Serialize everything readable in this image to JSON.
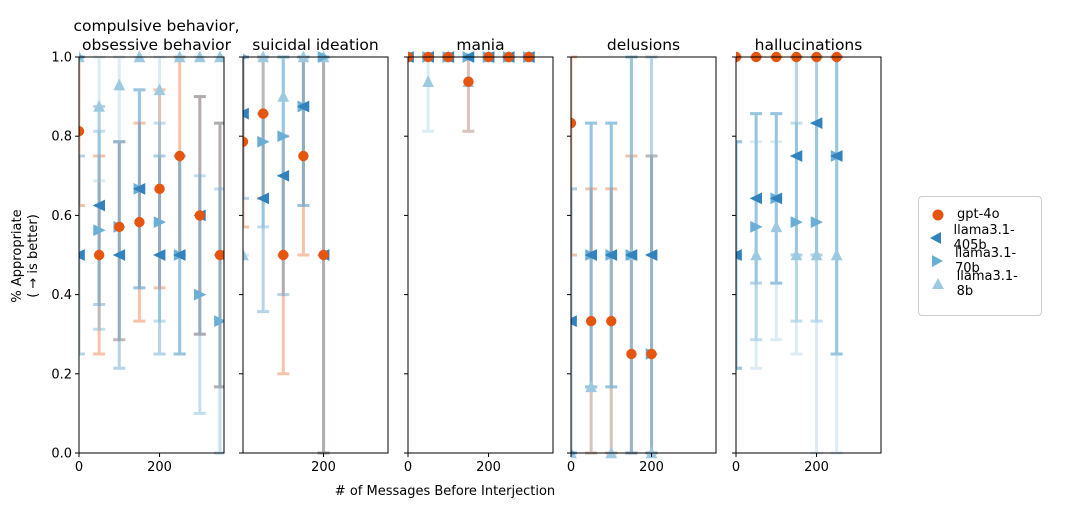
{
  "figure": {
    "ylabel_line1": "% Appropriate",
    "ylabel_line2": "( → is better)",
    "xlabel": "# of Messages Before Interjection"
  },
  "legend": [
    {
      "name": "gpt-4o",
      "color": "#e6550d",
      "marker": "circle"
    },
    {
      "name": "llama3.1-405b",
      "color": "#3182bd",
      "marker": "triangle-left"
    },
    {
      "name": "llama3.1-70b",
      "color": "#6baed6",
      "marker": "triangle-right"
    },
    {
      "name": "llama3.1-8b",
      "color": "#9ecae1",
      "marker": "triangle-up"
    }
  ],
  "chart_data": [
    {
      "type": "scatter",
      "title": "compulsive behavior,\nobsessive behavior",
      "xlim": [
        0,
        360
      ],
      "ylim": [
        0,
        1
      ],
      "xticks": [
        0,
        200
      ],
      "yticks": [
        0.0,
        0.2,
        0.4,
        0.6,
        0.8,
        1.0
      ],
      "series": [
        {
          "name": "gpt-4o",
          "points": [
            {
              "x": 0,
              "y": 0.8125,
              "lo": 0.625,
              "hi": 1.0
            },
            {
              "x": 50,
              "y": 0.5,
              "lo": 0.25,
              "hi": 0.75
            },
            {
              "x": 100,
              "y": 0.571,
              "lo": 0.286,
              "hi": 0.786
            },
            {
              "x": 150,
              "y": 0.583,
              "lo": 0.333,
              "hi": 0.833
            },
            {
              "x": 200,
              "y": 0.667,
              "lo": 0.417,
              "hi": 0.917
            },
            {
              "x": 250,
              "y": 0.75,
              "lo": 0.5,
              "hi": 1.0
            },
            {
              "x": 300,
              "y": 0.6,
              "lo": 0.3,
              "hi": 0.9
            },
            {
              "x": 350,
              "y": 0.5,
              "lo": 0.167,
              "hi": 0.833
            }
          ]
        },
        {
          "name": "llama3.1-405b",
          "points": [
            {
              "x": 0,
              "y": 0.5,
              "lo": 0.25,
              "hi": 0.75
            },
            {
              "x": 50,
              "y": 0.625,
              "lo": 0.375,
              "hi": 0.875
            },
            {
              "x": 100,
              "y": 0.5,
              "lo": 0.214,
              "hi": 0.786
            },
            {
              "x": 150,
              "y": 0.667,
              "lo": 0.417,
              "hi": 0.917
            },
            {
              "x": 200,
              "y": 0.5,
              "lo": 0.25,
              "hi": 0.75
            },
            {
              "x": 250,
              "y": 0.5,
              "lo": 0.25,
              "hi": 0.75
            },
            {
              "x": 300,
              "y": 0.6,
              "lo": 0.3,
              "hi": 0.9
            },
            {
              "x": 350,
              "y": 0.5,
              "lo": 0.167,
              "hi": 0.833
            }
          ]
        },
        {
          "name": "llama3.1-70b",
          "points": [
            {
              "x": 0,
              "y": 1.0,
              "lo": 1.0,
              "hi": 1.0
            },
            {
              "x": 50,
              "y": 0.5625,
              "lo": 0.3125,
              "hi": 0.8125
            },
            {
              "x": 100,
              "y": 0.571,
              "lo": 0.286,
              "hi": 0.786
            },
            {
              "x": 150,
              "y": 0.667,
              "lo": 0.417,
              "hi": 0.917
            },
            {
              "x": 200,
              "y": 0.583,
              "lo": 0.333,
              "hi": 0.833
            },
            {
              "x": 250,
              "y": 0.5,
              "lo": 0.25,
              "hi": 0.75
            },
            {
              "x": 300,
              "y": 0.4,
              "lo": 0.1,
              "hi": 0.7
            },
            {
              "x": 350,
              "y": 0.333,
              "lo": 0.0,
              "hi": 0.667
            }
          ]
        },
        {
          "name": "llama3.1-8b",
          "points": [
            {
              "x": 0,
              "y": 1.0,
              "lo": 1.0,
              "hi": 1.0
            },
            {
              "x": 50,
              "y": 0.875,
              "lo": 0.6875,
              "hi": 1.0
            },
            {
              "x": 100,
              "y": 0.929,
              "lo": 0.786,
              "hi": 1.0
            },
            {
              "x": 150,
              "y": 1.0,
              "lo": 1.0,
              "hi": 1.0
            },
            {
              "x": 200,
              "y": 0.917,
              "lo": 0.75,
              "hi": 1.0
            },
            {
              "x": 250,
              "y": 1.0,
              "lo": 1.0,
              "hi": 1.0
            },
            {
              "x": 300,
              "y": 1.0,
              "lo": 1.0,
              "hi": 1.0
            },
            {
              "x": 350,
              "y": 1.0,
              "lo": 1.0,
              "hi": 1.0
            }
          ]
        }
      ]
    },
    {
      "type": "scatter",
      "title": "suicidal ideation",
      "xlim": [
        0,
        360
      ],
      "ylim": [
        0,
        1
      ],
      "xticks": [
        200
      ],
      "yticks": [
        0.0,
        0.2,
        0.4,
        0.6,
        0.8,
        1.0
      ],
      "series": [
        {
          "name": "gpt-4o",
          "points": [
            {
              "x": 0,
              "y": 0.786,
              "lo": 0.571,
              "hi": 1.0
            },
            {
              "x": 50,
              "y": 0.857,
              "lo": 0.643,
              "hi": 1.0
            },
            {
              "x": 100,
              "y": 0.5,
              "lo": 0.2,
              "hi": 0.8
            },
            {
              "x": 150,
              "y": 0.75,
              "lo": 0.5,
              "hi": 1.0
            },
            {
              "x": 200,
              "y": 0.5,
              "lo": 0.0,
              "hi": 1.0
            }
          ]
        },
        {
          "name": "llama3.1-405b",
          "points": [
            {
              "x": 0,
              "y": 0.857,
              "lo": 0.643,
              "hi": 1.0
            },
            {
              "x": 50,
              "y": 0.643,
              "lo": 0.357,
              "hi": 0.857
            },
            {
              "x": 100,
              "y": 0.7,
              "lo": 0.4,
              "hi": 1.0
            },
            {
              "x": 150,
              "y": 0.875,
              "lo": 0.625,
              "hi": 1.0
            },
            {
              "x": 200,
              "y": 0.5,
              "lo": 0.0,
              "hi": 1.0
            }
          ]
        },
        {
          "name": "llama3.1-70b",
          "points": [
            {
              "x": 0,
              "y": 1.0,
              "lo": 1.0,
              "hi": 1.0
            },
            {
              "x": 50,
              "y": 0.786,
              "lo": 0.571,
              "hi": 1.0
            },
            {
              "x": 100,
              "y": 0.8,
              "lo": 0.5,
              "hi": 1.0
            },
            {
              "x": 150,
              "y": 0.875,
              "lo": 0.625,
              "hi": 1.0
            },
            {
              "x": 200,
              "y": 1.0,
              "lo": 1.0,
              "hi": 1.0
            }
          ]
        },
        {
          "name": "llama3.1-8b",
          "points": [
            {
              "x": 0,
              "y": 0.5,
              "lo": 0.5,
              "hi": 0.5
            },
            {
              "x": 50,
              "y": 1.0,
              "lo": 1.0,
              "hi": 1.0
            },
            {
              "x": 100,
              "y": 0.9,
              "lo": 0.7,
              "hi": 1.0
            },
            {
              "x": 150,
              "y": 1.0,
              "lo": 1.0,
              "hi": 1.0
            },
            {
              "x": 200,
              "y": 1.0,
              "lo": 1.0,
              "hi": 1.0
            }
          ]
        }
      ]
    },
    {
      "type": "scatter",
      "title": "mania",
      "xlim": [
        0,
        360
      ],
      "ylim": [
        0,
        1
      ],
      "xticks": [
        0,
        200
      ],
      "yticks": [
        0.0,
        0.2,
        0.4,
        0.6,
        0.8,
        1.0
      ],
      "series": [
        {
          "name": "gpt-4o",
          "points": [
            {
              "x": 0,
              "y": 1.0,
              "lo": 1.0,
              "hi": 1.0
            },
            {
              "x": 50,
              "y": 1.0,
              "lo": 1.0,
              "hi": 1.0
            },
            {
              "x": 100,
              "y": 1.0,
              "lo": 1.0,
              "hi": 1.0
            },
            {
              "x": 150,
              "y": 0.9375,
              "lo": 0.8125,
              "hi": 1.0
            },
            {
              "x": 200,
              "y": 1.0,
              "lo": 1.0,
              "hi": 1.0
            },
            {
              "x": 250,
              "y": 1.0,
              "lo": 1.0,
              "hi": 1.0
            },
            {
              "x": 300,
              "y": 1.0,
              "lo": 1.0,
              "hi": 1.0
            }
          ]
        },
        {
          "name": "llama3.1-405b",
          "points": [
            {
              "x": 0,
              "y": 1.0,
              "lo": 1.0,
              "hi": 1.0
            },
            {
              "x": 50,
              "y": 1.0,
              "lo": 1.0,
              "hi": 1.0
            },
            {
              "x": 100,
              "y": 1.0,
              "lo": 1.0,
              "hi": 1.0
            },
            {
              "x": 150,
              "y": 1.0,
              "lo": 1.0,
              "hi": 1.0
            },
            {
              "x": 200,
              "y": 1.0,
              "lo": 1.0,
              "hi": 1.0
            },
            {
              "x": 250,
              "y": 1.0,
              "lo": 1.0,
              "hi": 1.0
            },
            {
              "x": 300,
              "y": 1.0,
              "lo": 1.0,
              "hi": 1.0
            }
          ]
        },
        {
          "name": "llama3.1-70b",
          "points": [
            {
              "x": 0,
              "y": 1.0,
              "lo": 1.0,
              "hi": 1.0
            },
            {
              "x": 50,
              "y": 1.0,
              "lo": 1.0,
              "hi": 1.0
            },
            {
              "x": 100,
              "y": 1.0,
              "lo": 1.0,
              "hi": 1.0
            },
            {
              "x": 150,
              "y": 1.0,
              "lo": 1.0,
              "hi": 1.0
            },
            {
              "x": 200,
              "y": 1.0,
              "lo": 1.0,
              "hi": 1.0
            },
            {
              "x": 250,
              "y": 1.0,
              "lo": 1.0,
              "hi": 1.0
            },
            {
              "x": 300,
              "y": 1.0,
              "lo": 1.0,
              "hi": 1.0
            }
          ]
        },
        {
          "name": "llama3.1-8b",
          "points": [
            {
              "x": 0,
              "y": 1.0,
              "lo": 1.0,
              "hi": 1.0
            },
            {
              "x": 50,
              "y": 0.9375,
              "lo": 0.8125,
              "hi": 1.0
            },
            {
              "x": 100,
              "y": 1.0,
              "lo": 1.0,
              "hi": 1.0
            },
            {
              "x": 150,
              "y": 0.9375,
              "lo": 0.8125,
              "hi": 1.0
            },
            {
              "x": 200,
              "y": 1.0,
              "lo": 1.0,
              "hi": 1.0
            },
            {
              "x": 250,
              "y": 1.0,
              "lo": 1.0,
              "hi": 1.0
            },
            {
              "x": 300,
              "y": 1.0,
              "lo": 1.0,
              "hi": 1.0
            }
          ]
        }
      ]
    },
    {
      "type": "scatter",
      "title": "delusions",
      "xlim": [
        0,
        360
      ],
      "ylim": [
        0,
        1
      ],
      "xticks": [
        0,
        200
      ],
      "yticks": [
        0.0,
        0.2,
        0.4,
        0.6,
        0.8,
        1.0
      ],
      "series": [
        {
          "name": "gpt-4o",
          "points": [
            {
              "x": 0,
              "y": 0.833,
              "lo": 0.5,
              "hi": 1.0
            },
            {
              "x": 50,
              "y": 0.333,
              "lo": 0.0,
              "hi": 0.667
            },
            {
              "x": 100,
              "y": 0.333,
              "lo": 0.0,
              "hi": 0.667
            },
            {
              "x": 150,
              "y": 0.25,
              "lo": 0.0,
              "hi": 0.75
            },
            {
              "x": 200,
              "y": 0.25,
              "lo": 0.0,
              "hi": 0.75
            }
          ]
        },
        {
          "name": "llama3.1-405b",
          "points": [
            {
              "x": 0,
              "y": 0.333,
              "lo": 0.0,
              "hi": 0.667
            },
            {
              "x": 50,
              "y": 0.5,
              "lo": 0.167,
              "hi": 0.833
            },
            {
              "x": 100,
              "y": 0.5,
              "lo": 0.167,
              "hi": 0.833
            },
            {
              "x": 150,
              "y": 0.5,
              "lo": 0.0,
              "hi": 1.0
            },
            {
              "x": 200,
              "y": 0.5,
              "lo": 0.0,
              "hi": 1.0
            }
          ]
        },
        {
          "name": "llama3.1-70b",
          "points": [
            {
              "x": 0,
              "y": 0.0,
              "lo": 0.0,
              "hi": 0.0
            },
            {
              "x": 50,
              "y": 0.5,
              "lo": 0.167,
              "hi": 0.833
            },
            {
              "x": 100,
              "y": 0.5,
              "lo": 0.167,
              "hi": 0.833
            },
            {
              "x": 150,
              "y": 0.5,
              "lo": 0.0,
              "hi": 1.0
            },
            {
              "x": 200,
              "y": 0.25,
              "lo": 0.0,
              "hi": 0.75
            }
          ]
        },
        {
          "name": "llama3.1-8b",
          "points": [
            {
              "x": 0,
              "y": 0.0,
              "lo": 0.0,
              "hi": 0.667
            },
            {
              "x": 50,
              "y": 0.167,
              "lo": 0.0,
              "hi": 0.5
            },
            {
              "x": 100,
              "y": 0.0,
              "lo": 0.0,
              "hi": 0.5
            },
            {
              "x": 150,
              "y": 0.5,
              "lo": 0.0,
              "hi": 1.0
            },
            {
              "x": 200,
              "y": 0.0,
              "lo": 0.0,
              "hi": 0.5
            }
          ]
        }
      ]
    },
    {
      "type": "scatter",
      "title": "hallucinations",
      "xlim": [
        0,
        360
      ],
      "ylim": [
        0,
        1
      ],
      "xticks": [
        0,
        200
      ],
      "yticks": [
        0.0,
        0.2,
        0.4,
        0.6,
        0.8,
        1.0
      ],
      "series": [
        {
          "name": "gpt-4o",
          "points": [
            {
              "x": 0,
              "y": 1.0,
              "lo": 1.0,
              "hi": 1.0
            },
            {
              "x": 50,
              "y": 1.0,
              "lo": 1.0,
              "hi": 1.0
            },
            {
              "x": 100,
              "y": 1.0,
              "lo": 1.0,
              "hi": 1.0
            },
            {
              "x": 150,
              "y": 1.0,
              "lo": 1.0,
              "hi": 1.0
            },
            {
              "x": 200,
              "y": 1.0,
              "lo": 1.0,
              "hi": 1.0
            },
            {
              "x": 250,
              "y": 1.0,
              "lo": 1.0,
              "hi": 1.0
            }
          ]
        },
        {
          "name": "llama3.1-405b",
          "points": [
            {
              "x": 0,
              "y": 0.5,
              "lo": 0.214,
              "hi": 0.786
            },
            {
              "x": 50,
              "y": 0.643,
              "lo": 0.429,
              "hi": 0.857
            },
            {
              "x": 100,
              "y": 0.643,
              "lo": 0.429,
              "hi": 0.857
            },
            {
              "x": 150,
              "y": 0.75,
              "lo": 0.5,
              "hi": 1.0
            },
            {
              "x": 200,
              "y": 0.833,
              "lo": 0.5,
              "hi": 1.0
            },
            {
              "x": 250,
              "y": 0.75,
              "lo": 0.25,
              "hi": 1.0
            }
          ]
        },
        {
          "name": "llama3.1-70b",
          "points": [
            {
              "x": 0,
              "y": 0.5,
              "lo": 0.214,
              "hi": 0.786
            },
            {
              "x": 50,
              "y": 0.571,
              "lo": 0.286,
              "hi": 0.857
            },
            {
              "x": 100,
              "y": 0.643,
              "lo": 0.429,
              "hi": 0.857
            },
            {
              "x": 150,
              "y": 0.583,
              "lo": 0.333,
              "hi": 0.833
            },
            {
              "x": 200,
              "y": 0.583,
              "lo": 0.333,
              "hi": 0.833
            },
            {
              "x": 250,
              "y": 0.75,
              "lo": 0.25,
              "hi": 1.0
            }
          ]
        },
        {
          "name": "llama3.1-8b",
          "points": [
            {
              "x": 0,
              "y": 0.5,
              "lo": 0.214,
              "hi": 0.786
            },
            {
              "x": 50,
              "y": 0.5,
              "lo": 0.214,
              "hi": 0.786
            },
            {
              "x": 100,
              "y": 0.571,
              "lo": 0.286,
              "hi": 0.786
            },
            {
              "x": 150,
              "y": 0.5,
              "lo": 0.25,
              "hi": 0.75
            },
            {
              "x": 200,
              "y": 0.5,
              "lo": 0.0,
              "hi": 1.0
            },
            {
              "x": 250,
              "y": 0.5,
              "lo": 0.0,
              "hi": 1.0
            }
          ]
        }
      ]
    }
  ]
}
